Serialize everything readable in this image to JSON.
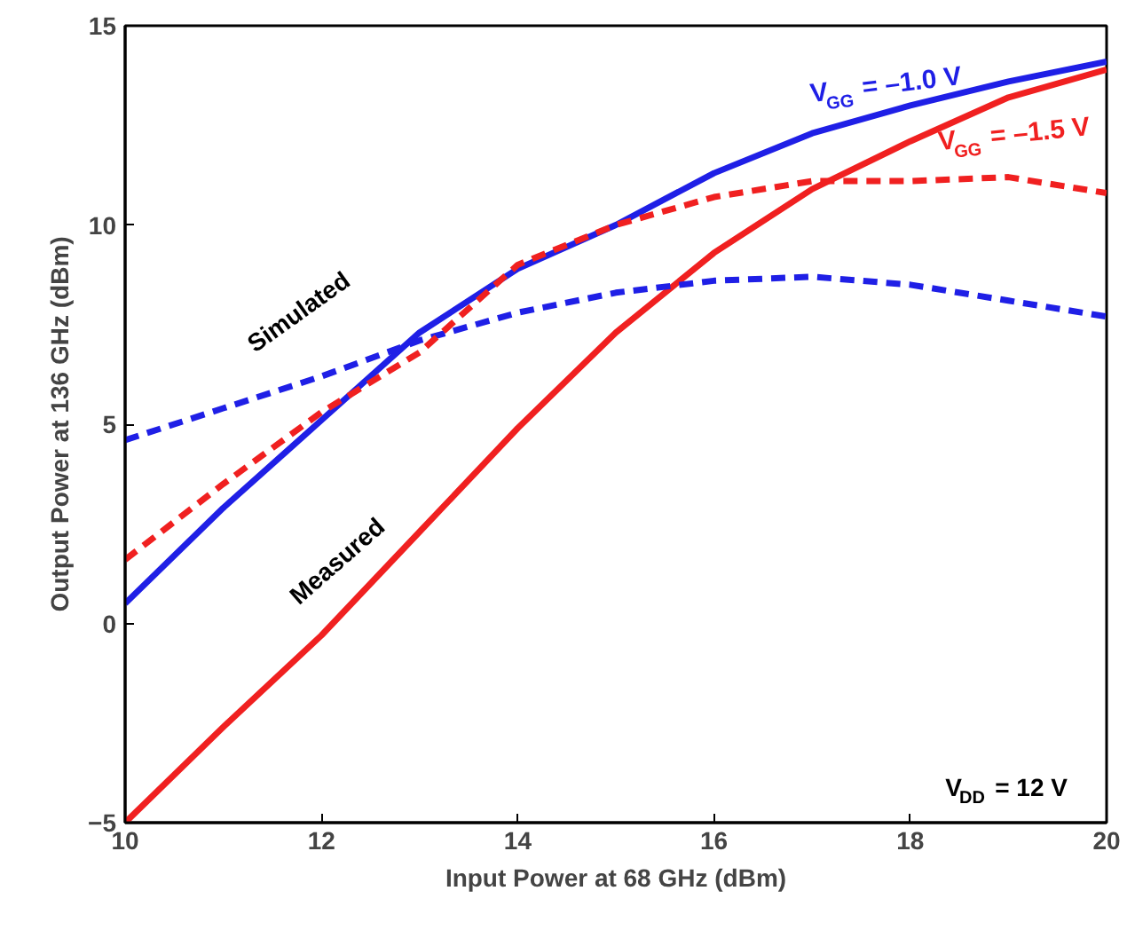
{
  "chart_data": {
    "type": "line",
    "xlabel": "Input Power at 68 GHz (dBm)",
    "ylabel": "Output Power at 136 GHz (dBm)",
    "x": [
      10,
      11,
      12,
      13,
      14,
      15,
      16,
      17,
      18,
      19,
      20
    ],
    "xlim": [
      10,
      20
    ],
    "ylim": [
      -5,
      15
    ],
    "xticks": [
      10,
      12,
      14,
      16,
      18,
      20
    ],
    "yticks": [
      -5,
      0,
      5,
      10,
      15
    ],
    "grid": false,
    "marker": "none",
    "series": [
      {
        "name": "V$_{GG}$ = –1.0 V",
        "color": "#1f1fe6",
        "line_style": "solid",
        "values": [
          0.5,
          2.9,
          5.1,
          7.3,
          8.9,
          10.0,
          11.3,
          12.3,
          13.0,
          13.6,
          14.1
        ]
      },
      {
        "name": "V$_{GG}$ = –1.5 V",
        "color": "#f02020",
        "line_style": "solid",
        "values": [
          -5,
          -2.6,
          -0.3,
          2.3,
          4.9,
          7.3,
          9.3,
          10.9,
          12.1,
          13.2,
          13.9
        ]
      },
      {
        "color": "#1f1fe6",
        "line_style": "dashed",
        "values": [
          4.6,
          5.4,
          6.2,
          7.1,
          7.8,
          8.3,
          8.6,
          8.7,
          8.5,
          8.1,
          7.7
        ]
      },
      {
        "color": "#f02020",
        "line_style": "dashed",
        "values": [
          1.6,
          3.5,
          5.3,
          6.8,
          9.0,
          10.0,
          10.7,
          11.1,
          11.1,
          11.2,
          10.8
        ]
      }
    ],
    "annotations": [
      "Simulated",
      "Measured",
      "V$_{DD}$ = 12 V"
    ]
  }
}
